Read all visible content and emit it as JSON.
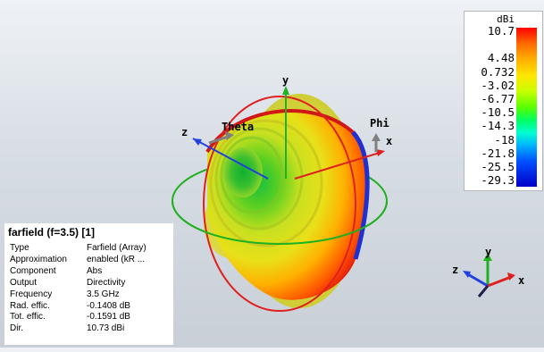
{
  "scale": {
    "unit": "dBi",
    "labels": [
      "10.7",
      "4.48",
      "0.732",
      "-3.02",
      "-6.77",
      "-10.5",
      "-14.3",
      "-18",
      "-21.8",
      "-25.5",
      "-29.3"
    ]
  },
  "axes": {
    "x": "x",
    "y": "y",
    "z": "z",
    "theta": "Theta",
    "phi": "Phi"
  },
  "info": {
    "title": "farfield (f=3.5) [1]",
    "rows": [
      {
        "key": "Type",
        "value": "Farfield (Array)"
      },
      {
        "key": "Approximation",
        "value": "enabled (kR ..."
      },
      {
        "key": "Component",
        "value": "Abs"
      },
      {
        "key": "Output",
        "value": "Directivity"
      },
      {
        "key": "Frequency",
        "value": "3.5 GHz"
      },
      {
        "key": "Rad. effic.",
        "value": "-0.1408 dB"
      },
      {
        "key": "Tot. effic.",
        "value": "-0.1591 dB"
      },
      {
        "key": "Dir.",
        "value": "10.73 dBi"
      }
    ]
  },
  "colors": {
    "x_axis": "#e02020",
    "y_axis": "#20b020",
    "z_axis": "#2040e0",
    "theta_ring": "#e02020",
    "phi_ring": "#20b020"
  }
}
